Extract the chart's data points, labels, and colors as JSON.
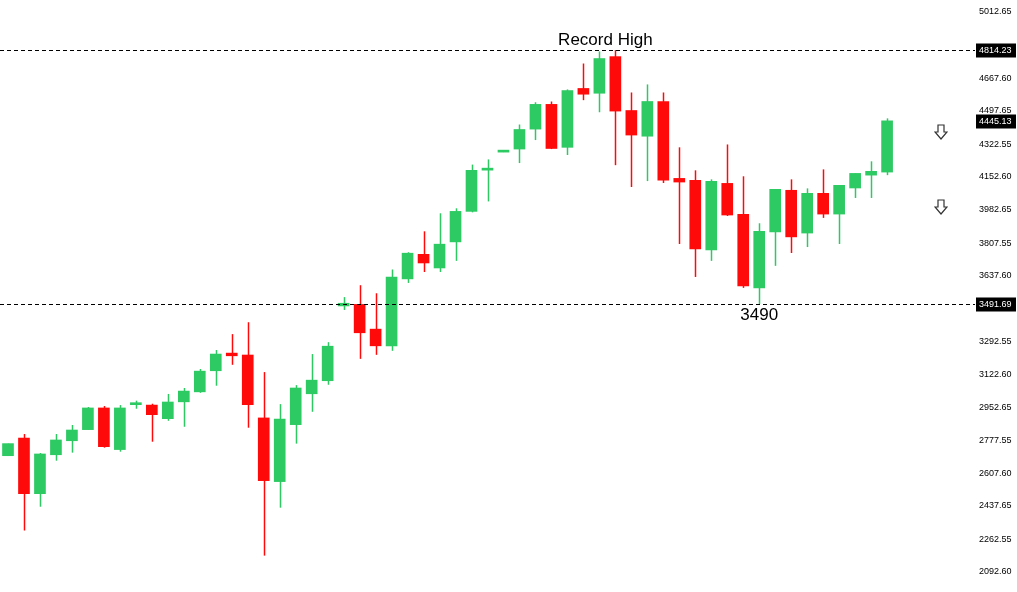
{
  "chart_data": {
    "type": "candlestick",
    "categories": [
      null,
      null,
      null,
      null,
      null,
      null,
      null,
      null,
      null,
      null,
      null,
      null,
      null,
      null,
      null,
      null,
      null,
      null,
      null,
      null,
      null,
      null,
      null,
      null,
      null,
      null,
      null,
      null,
      null,
      null,
      null,
      null,
      null,
      null,
      null,
      null,
      null,
      null,
      null,
      null,
      null,
      null,
      null,
      null,
      null,
      null,
      null,
      null,
      null,
      null,
      null,
      null,
      null,
      null,
      null,
      null,
      null,
      null,
      null,
      null,
      null
    ],
    "ohlc": [
      [
        2699,
        2762,
        2699,
        2762
      ],
      [
        2791,
        2812,
        2309,
        2501
      ],
      [
        2501,
        2713,
        2433,
        2708
      ],
      [
        2704,
        2812,
        2673,
        2781
      ],
      [
        2777,
        2859,
        2715,
        2833
      ],
      [
        2835,
        2953,
        2834,
        2948
      ],
      [
        2948,
        2958,
        2741,
        2746
      ],
      [
        2731,
        2963,
        2720,
        2948
      ],
      [
        2965,
        2986,
        2944,
        2968
      ],
      [
        2963,
        2970,
        2772,
        2913
      ],
      [
        2892,
        3021,
        2881,
        2979
      ],
      [
        2980,
        3052,
        2850,
        3036
      ],
      [
        3032,
        3151,
        3027,
        3140
      ],
      [
        3142,
        3250,
        3064,
        3229
      ],
      [
        3234,
        3333,
        3173,
        3220
      ],
      [
        3224,
        3395,
        2845,
        2965
      ],
      [
        2896,
        3135,
        2178,
        2569
      ],
      [
        2564,
        2968,
        2428,
        2890
      ],
      [
        2861,
        3067,
        2762,
        3052
      ],
      [
        3022,
        3229,
        2928,
        3093
      ],
      [
        3090,
        3291,
        3069,
        3270
      ],
      [
        3480,
        3526,
        3459,
        3494
      ],
      [
        3488,
        3588,
        3204,
        3340
      ],
      [
        3359,
        3546,
        3225,
        3272
      ],
      [
        3272,
        3670,
        3246,
        3630
      ],
      [
        3621,
        3760,
        3600,
        3755
      ],
      [
        3749,
        3869,
        3657,
        3704
      ],
      [
        3678,
        3963,
        3657,
        3802
      ],
      [
        3814,
        3989,
        3715,
        3973
      ],
      [
        3973,
        4217,
        3968,
        4187
      ],
      [
        4188,
        4244,
        4025,
        4192
      ],
      [
        4282,
        4284,
        4282,
        4284
      ],
      [
        4298,
        4426,
        4225,
        4400
      ],
      [
        4402,
        4542,
        4345,
        4531
      ],
      [
        4531,
        4546,
        4298,
        4301
      ],
      [
        4307,
        4609,
        4267,
        4603
      ],
      [
        4614,
        4744,
        4553,
        4584
      ],
      [
        4589,
        4807,
        4490,
        4770
      ],
      [
        4780,
        4814.23,
        4214,
        4496
      ],
      [
        4499,
        4593,
        4100,
        4371
      ],
      [
        4365,
        4635,
        4131,
        4546
      ],
      [
        4546,
        4593,
        4121,
        4136
      ],
      [
        4145,
        4307,
        3803,
        4126
      ],
      [
        4135,
        4187,
        3631,
        3777
      ],
      [
        3772,
        4140,
        3715,
        4130
      ],
      [
        4119,
        4322,
        3949,
        3954
      ],
      [
        3958,
        4156,
        3574,
        3584
      ],
      [
        3574,
        3911,
        3490,
        3869
      ],
      [
        3866,
        4088,
        3689,
        4088
      ],
      [
        4083,
        4140,
        3756,
        3840
      ],
      [
        3860,
        4093,
        3787,
        4067
      ],
      [
        4067,
        4192,
        3939,
        3959
      ],
      [
        3959,
        4109,
        3803,
        4109
      ],
      [
        4095,
        4171,
        4043,
        4171
      ],
      [
        4162,
        4234,
        4043,
        4182
      ],
      [
        4178,
        4458,
        4162,
        4445.13
      ],
      null,
      null,
      null,
      null,
      null
    ],
    "colors": [
      "#2dc963",
      "#ff0a0a",
      "#2dc963",
      "#2dc963",
      "#2dc963",
      "#2dc963",
      "#ff0a0a",
      "#2dc963",
      "#2dc963",
      "#ff0a0a",
      "#2dc963",
      "#2dc963",
      "#2dc963",
      "#2dc963",
      "#ff0a0a",
      "#ff0a0a",
      "#ff0a0a",
      "#2dc963",
      "#2dc963",
      "#2dc963",
      "#2dc963",
      "#2dc963",
      "#ff0a0a",
      "#ff0a0a",
      "#2dc963",
      "#2dc963",
      "#ff0a0a",
      "#2dc963",
      "#2dc963",
      "#2dc963",
      "#2dc963",
      "#2dc963",
      "#2dc963",
      "#2dc963",
      "#ff0a0a",
      "#2dc963",
      "#ff0a0a",
      "#2dc963",
      "#ff0a0a",
      "#ff0a0a",
      "#2dc963",
      "#ff0a0a",
      "#ff0a0a",
      "#ff0a0a",
      "#2dc963",
      "#ff0a0a",
      "#ff0a0a",
      "#2dc963",
      "#2dc963",
      "#ff0a0a",
      "#2dc963",
      "#ff0a0a",
      "#2dc963",
      "#2dc963",
      "#2dc963",
      "#2dc963",
      null,
      null,
      null,
      null,
      null
    ],
    "ylim": [
      2092.6,
      5012.65
    ],
    "yticks": [
      {
        "value": 5012.65,
        "label": "5012.65"
      },
      {
        "value": 4667.6,
        "label": "4667.60"
      },
      {
        "value": 4497.65,
        "label": "4497.65"
      },
      {
        "value": 4322.55,
        "label": "4322.55"
      },
      {
        "value": 4152.6,
        "label": "4152.60"
      },
      {
        "value": 3982.65,
        "label": "3982.65"
      },
      {
        "value": 3807.55,
        "label": "3807.55"
      },
      {
        "value": 3637.6,
        "label": "3637.60"
      },
      {
        "value": 3292.55,
        "label": "3292.55"
      },
      {
        "value": 3122.6,
        "label": "3122.60"
      },
      {
        "value": 2952.65,
        "label": "2952.65"
      },
      {
        "value": 2777.55,
        "label": "2777.55"
      },
      {
        "value": 2607.6,
        "label": "2607.60"
      },
      {
        "value": 2437.65,
        "label": "2437.65"
      },
      {
        "value": 2262.55,
        "label": "2262.55"
      },
      {
        "value": 2092.6,
        "label": "2092.60"
      }
    ],
    "ref_lines": [
      {
        "axis": "y",
        "value": 4814.23,
        "label": "4814.23",
        "color": "#000000",
        "line_style": "dashed"
      },
      {
        "axis": "y",
        "value": 3491.69,
        "label": "3491.69",
        "color": "#000000",
        "line_style": "dashed"
      }
    ],
    "annotations": [
      {
        "text": "Record High",
        "y": 4814.23
      },
      {
        "text": "3490",
        "y": 3490
      },
      {
        "text": "4445.13",
        "y": 4445.13
      }
    ]
  }
}
